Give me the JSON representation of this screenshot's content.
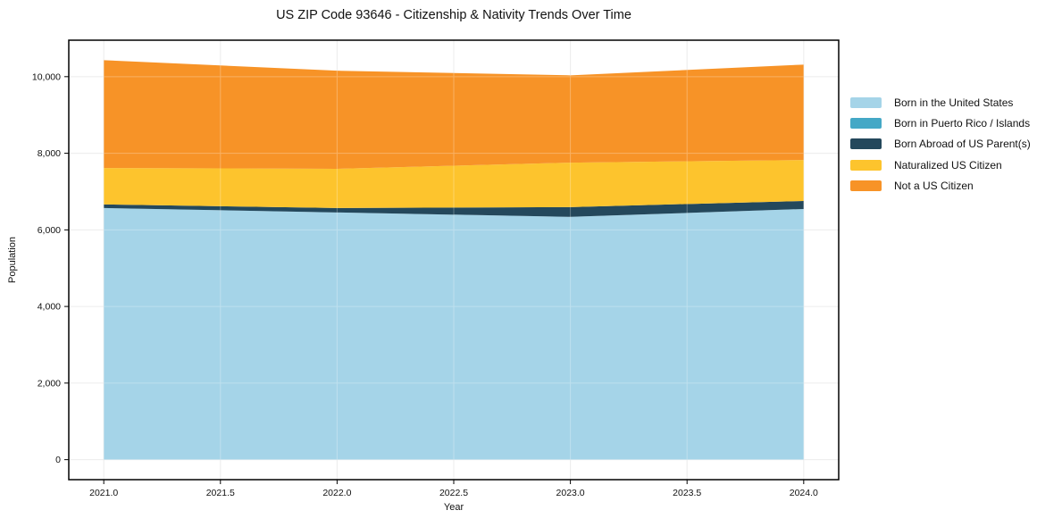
{
  "chart_data": {
    "type": "area",
    "stacked": true,
    "title": "US ZIP Code 93646 - Citizenship & Nativity Trends Over Time",
    "xlabel": "Year",
    "ylabel": "Population",
    "x": [
      2021,
      2022,
      2023,
      2024
    ],
    "series": [
      {
        "name": "Born in the United States",
        "color": "#a5d4e8",
        "values": [
          6570,
          6455,
          6340,
          6545
        ]
      },
      {
        "name": "Born in Puerto Rico / Islands",
        "color": "#44a8c6",
        "values": [
          0,
          0,
          0,
          0
        ]
      },
      {
        "name": "Born Abroad of US Parent(s)",
        "color": "#24485c",
        "values": [
          95,
          115,
          255,
          210
        ]
      },
      {
        "name": "Naturalized US Citizen",
        "color": "#fdc42d",
        "values": [
          950,
          1025,
          1160,
          1070
        ]
      },
      {
        "name": "Not a US Citizen",
        "color": "#f79327",
        "values": [
          2815,
          2560,
          2280,
          2490
        ]
      }
    ],
    "totals": [
      10430,
      10155,
      10035,
      10315
    ],
    "xlim": [
      2020.85,
      2024.15
    ],
    "ylim": [
      -522,
      10952
    ],
    "xticks": {
      "values": [
        2021.0,
        2021.5,
        2022.0,
        2022.5,
        2023.0,
        2023.5,
        2024.0
      ],
      "labels": [
        "2021.0",
        "2021.5",
        "2022.0",
        "2022.5",
        "2023.0",
        "2023.5",
        "2024.0"
      ]
    },
    "yticks": {
      "values": [
        0,
        2000,
        4000,
        6000,
        8000,
        10000
      ],
      "labels": [
        "0",
        "2,000",
        "4,000",
        "6,000",
        "8,000",
        "10,000"
      ]
    },
    "grid": true,
    "legend_position": "right-outside"
  },
  "colors": {
    "background": "#ffffff",
    "grid": "#e6e6e6",
    "grid_over_area": "#ffffff",
    "spine": "#000000",
    "tick": "#000000",
    "text": "#111111"
  }
}
